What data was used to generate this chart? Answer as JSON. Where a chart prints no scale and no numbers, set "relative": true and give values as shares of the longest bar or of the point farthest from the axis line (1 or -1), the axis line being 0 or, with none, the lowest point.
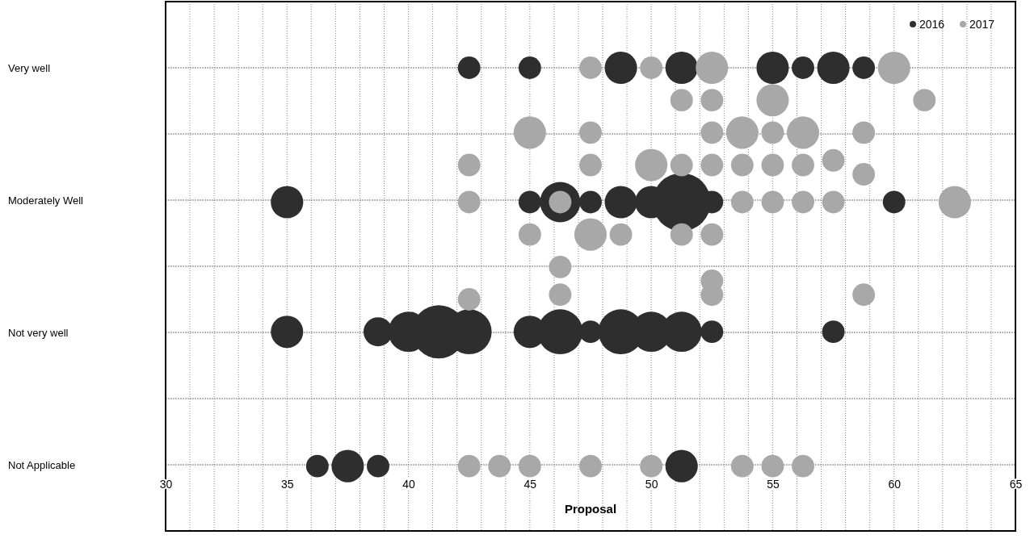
{
  "chart_data": {
    "type": "bubble",
    "xlabel": "Proposal",
    "relative": true,
    "annotations": [
      "Very well",
      "Moderately Well",
      "Not very well",
      "Not Applicable"
    ],
    "xlim": [
      30,
      65
    ],
    "xticks": [
      30,
      {
        "value": 31,
        "label": null
      },
      {
        "value": 32,
        "label": null
      },
      {
        "value": 33,
        "label": null
      },
      {
        "value": 34,
        "label": null
      },
      35,
      {
        "value": 36,
        "label": null
      },
      {
        "value": 37,
        "label": null
      },
      {
        "value": 38,
        "label": null
      },
      {
        "value": 39,
        "label": null
      },
      40,
      {
        "value": 41,
        "label": null
      },
      {
        "value": 42,
        "label": null
      },
      {
        "value": 43,
        "label": null
      },
      {
        "value": 44,
        "label": null
      },
      45,
      {
        "value": 46,
        "label": null
      },
      {
        "value": 47,
        "label": null
      },
      {
        "value": 48,
        "label": null
      },
      {
        "value": 49,
        "label": null
      },
      50,
      {
        "value": 51,
        "label": null
      },
      {
        "value": 52,
        "label": null
      },
      {
        "value": 53,
        "label": null
      },
      {
        "value": 54,
        "label": null
      },
      55,
      {
        "value": 56,
        "label": null
      },
      {
        "value": 57,
        "label": null
      },
      {
        "value": 58,
        "label": null
      },
      {
        "value": 59,
        "label": null
      },
      60,
      {
        "value": 61,
        "label": null
      },
      {
        "value": 62,
        "label": null
      },
      {
        "value": 63,
        "label": null
      },
      {
        "value": 64,
        "label": null
      },
      65
    ],
    "grid": true,
    "legend": "top right",
    "series": [
      {
        "name": "2016",
        "color": "#2e2e2e",
        "x": [
          42.5,
          45,
          48.75,
          51.25,
          55,
          56.25,
          57.5,
          58.75,
          35,
          45,
          46.25,
          47.5,
          48.75,
          50,
          51.25,
          52.5,
          60,
          35,
          38.75,
          40,
          41.25,
          42.5,
          45,
          46.25,
          47.5,
          48.75,
          50,
          51.25,
          52.5,
          57.5,
          36.25,
          37.5,
          38.75,
          51.25
        ],
        "values": [
          1,
          1,
          1,
          1,
          1,
          1,
          1,
          1,
          0.71,
          0.71,
          0.71,
          0.71,
          0.71,
          0.71,
          0.71,
          0.71,
          0.71,
          0.43,
          0.43,
          0.43,
          0.43,
          0.43,
          0.43,
          0.43,
          0.43,
          0.43,
          0.43,
          0.43,
          0.43,
          0.43,
          0.14,
          0.14,
          0.14,
          0.14
        ],
        "sizes": [
          0.15,
          0.15,
          0.31,
          0.31,
          0.31,
          0.15,
          0.31,
          0.15,
          0.31,
          0.15,
          0.48,
          0.15,
          0.31,
          0.31,
          1,
          0.15,
          0.15,
          0.31,
          0.25,
          0.48,
          0.84,
          0.6,
          0.31,
          0.6,
          0.15,
          0.6,
          0.48,
          0.48,
          0.15,
          0.15,
          0.15,
          0.31,
          0.15,
          0.31
        ]
      },
      {
        "name": "2017",
        "color": "#a8a8a8",
        "x": [
          47.5,
          50,
          52.5,
          60,
          51.25,
          52.5,
          55,
          61.25,
          45,
          47.5,
          52.5,
          53.75,
          55,
          56.25,
          58.75,
          42.5,
          47.5,
          50,
          51.25,
          52.5,
          53.75,
          55,
          56.25,
          57.5,
          58.75,
          42.5,
          46.25,
          53.75,
          55,
          56.25,
          57.5,
          62.5,
          45,
          47.5,
          48.75,
          51.25,
          52.5,
          46.25,
          46.25,
          42.5,
          52.5,
          52.5,
          58.75,
          42.5,
          43.75,
          45,
          47.5,
          50,
          53.75,
          55,
          56.25
        ],
        "values": [
          1,
          1,
          1,
          1,
          0.93,
          0.93,
          0.93,
          0.93,
          0.86,
          0.86,
          0.86,
          0.86,
          0.86,
          0.86,
          0.86,
          0.79,
          0.79,
          0.79,
          0.79,
          0.79,
          0.79,
          0.79,
          0.79,
          0.8,
          0.77,
          0.71,
          0.71,
          0.71,
          0.71,
          0.71,
          0.71,
          0.71,
          0.64,
          0.64,
          0.64,
          0.64,
          0.64,
          0.57,
          0.51,
          0.5,
          0.54,
          0.51,
          0.51,
          0.14,
          0.14,
          0.14,
          0.14,
          0.14,
          0.14,
          0.14,
          0.14
        ],
        "sizes": [
          0.15,
          0.15,
          0.31,
          0.31,
          0.15,
          0.15,
          0.31,
          0.15,
          0.31,
          0.15,
          0.15,
          0.31,
          0.15,
          0.31,
          0.15,
          0.15,
          0.15,
          0.31,
          0.15,
          0.15,
          0.15,
          0.15,
          0.15,
          0.15,
          0.15,
          0.15,
          0.15,
          0.15,
          0.15,
          0.15,
          0.15,
          0.31,
          0.15,
          0.31,
          0.15,
          0.15,
          0.15,
          0.15,
          0.15,
          0.15,
          0.15,
          0.15,
          0.15,
          0.15,
          0.15,
          0.15,
          0.15,
          0.15,
          0.15,
          0.15,
          0.15
        ]
      }
    ]
  }
}
